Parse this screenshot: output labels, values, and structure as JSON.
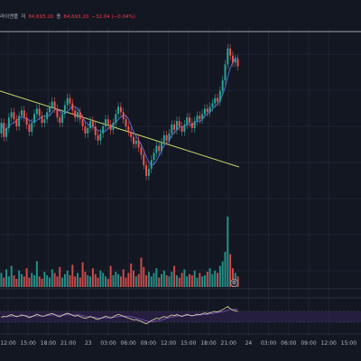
{
  "legend": {
    "title": "라이엔플",
    "open_key": "저",
    "low_value": "84,693.20",
    "close_key": "종",
    "close_value": "84,693.20",
    "change": "−32.04 (−0.04%)"
  },
  "colors": {
    "background": "#131722",
    "grid": "#1f2330",
    "up": "#26a69a",
    "down": "#ef5350",
    "trendline": "#c6d66b",
    "ma": "#5b6ee1",
    "rsi_line": "#e7d9a8",
    "rsi_band": "#2a2046",
    "rsi_signal": "#7e57c2"
  },
  "icons": {
    "settings": "gear-icon"
  },
  "chart_data": {
    "type": "candlestick",
    "time_labels": [
      "12:00",
      "15:00",
      "18:00",
      "21:00",
      "23",
      "03:00",
      "06:00",
      "09:00",
      "12:00",
      "15:00",
      "18:00",
      "21:00",
      "24",
      "03:00",
      "06:00",
      "09:00",
      "12:00",
      "15:00"
    ],
    "price_range": [
      0,
      100
    ],
    "candles": [
      [
        46,
        52
      ],
      [
        52,
        44
      ],
      [
        44,
        49
      ],
      [
        49,
        55
      ],
      [
        55,
        58
      ],
      [
        58,
        54
      ],
      [
        54,
        50
      ],
      [
        50,
        56
      ],
      [
        56,
        59
      ],
      [
        59,
        55
      ],
      [
        55,
        51
      ],
      [
        51,
        47
      ],
      [
        47,
        52
      ],
      [
        52,
        57
      ],
      [
        57,
        60
      ],
      [
        60,
        56
      ],
      [
        56,
        52
      ],
      [
        52,
        54
      ],
      [
        54,
        58
      ],
      [
        58,
        61
      ],
      [
        61,
        64
      ],
      [
        64,
        60
      ],
      [
        60,
        55
      ],
      [
        55,
        52
      ],
      [
        52,
        57
      ],
      [
        57,
        62
      ],
      [
        62,
        66
      ],
      [
        66,
        63
      ],
      [
        63,
        59
      ],
      [
        59,
        55
      ],
      [
        55,
        58
      ],
      [
        58,
        54
      ],
      [
        54,
        50
      ],
      [
        50,
        46
      ],
      [
        46,
        49
      ],
      [
        49,
        53
      ],
      [
        53,
        50
      ],
      [
        50,
        45
      ],
      [
        45,
        42
      ],
      [
        42,
        46
      ],
      [
        46,
        50
      ],
      [
        50,
        54
      ],
      [
        54,
        51
      ],
      [
        51,
        48
      ],
      [
        48,
        52
      ],
      [
        52,
        57
      ],
      [
        57,
        61
      ],
      [
        61,
        58
      ],
      [
        58,
        54
      ],
      [
        54,
        50
      ],
      [
        50,
        47
      ],
      [
        47,
        44
      ],
      [
        44,
        40
      ],
      [
        40,
        42
      ],
      [
        42,
        38
      ],
      [
        38,
        34
      ],
      [
        34,
        28
      ],
      [
        28,
        22
      ],
      [
        22,
        26
      ],
      [
        26,
        31
      ],
      [
        31,
        35
      ],
      [
        35,
        39
      ],
      [
        39,
        36
      ],
      [
        36,
        41
      ],
      [
        41,
        45
      ],
      [
        45,
        42
      ],
      [
        42,
        46
      ],
      [
        46,
        51
      ],
      [
        51,
        48
      ],
      [
        48,
        53
      ],
      [
        53,
        50
      ],
      [
        50,
        47
      ],
      [
        47,
        51
      ],
      [
        51,
        55
      ],
      [
        55,
        52
      ],
      [
        52,
        49
      ],
      [
        49,
        53
      ],
      [
        53,
        56
      ],
      [
        56,
        54
      ],
      [
        54,
        57
      ],
      [
        57,
        60
      ],
      [
        60,
        58
      ],
      [
        58,
        61
      ],
      [
        61,
        63
      ],
      [
        63,
        66
      ],
      [
        66,
        64
      ],
      [
        64,
        70
      ],
      [
        70,
        76
      ],
      [
        76,
        85
      ],
      [
        85,
        94
      ],
      [
        94,
        90
      ],
      [
        90,
        86
      ],
      [
        86,
        88
      ],
      [
        88,
        84
      ]
    ],
    "volume": [
      12,
      8,
      15,
      9,
      18,
      10,
      7,
      14,
      11,
      9,
      16,
      8,
      12,
      10,
      22,
      9,
      7,
      13,
      10,
      8,
      15,
      12,
      9,
      17,
      8,
      11,
      14,
      10,
      19,
      9,
      12,
      8,
      21,
      13,
      10,
      9,
      16,
      11,
      8,
      14,
      12,
      9,
      7,
      18,
      10,
      13,
      11,
      9,
      15,
      8,
      12,
      20,
      14,
      9,
      11,
      25,
      17,
      10,
      13,
      9,
      12,
      16,
      8,
      11,
      14,
      10,
      9,
      13,
      18,
      10,
      8,
      12,
      15,
      9,
      11,
      10,
      14,
      8,
      12,
      9,
      10,
      13,
      16,
      11,
      14,
      12,
      18,
      22,
      30,
      60,
      28,
      16,
      12,
      9
    ],
    "trendline": {
      "start": [
        0,
        70
      ],
      "end": [
        93,
        27
      ]
    },
    "rsi": [
      48,
      52,
      50,
      55,
      58,
      54,
      50,
      53,
      57,
      55,
      51,
      47,
      50,
      55,
      59,
      56,
      52,
      53,
      57,
      60,
      62,
      58,
      53,
      50,
      55,
      60,
      63,
      60,
      56,
      52,
      55,
      51,
      47,
      44,
      47,
      51,
      48,
      43,
      40,
      44,
      48,
      52,
      49,
      46,
      50,
      55,
      59,
      56,
      52,
      48,
      45,
      42,
      38,
      40,
      36,
      33,
      28,
      24,
      30,
      36,
      40,
      45,
      42,
      47,
      51,
      48,
      52,
      57,
      54,
      58,
      55,
      51,
      55,
      59,
      56,
      53,
      56,
      60,
      58,
      61,
      64,
      62,
      65,
      67,
      70,
      68,
      72,
      76,
      82,
      88,
      80,
      74,
      72,
      70
    ],
    "rsi_levels": [
      30,
      70
    ]
  }
}
